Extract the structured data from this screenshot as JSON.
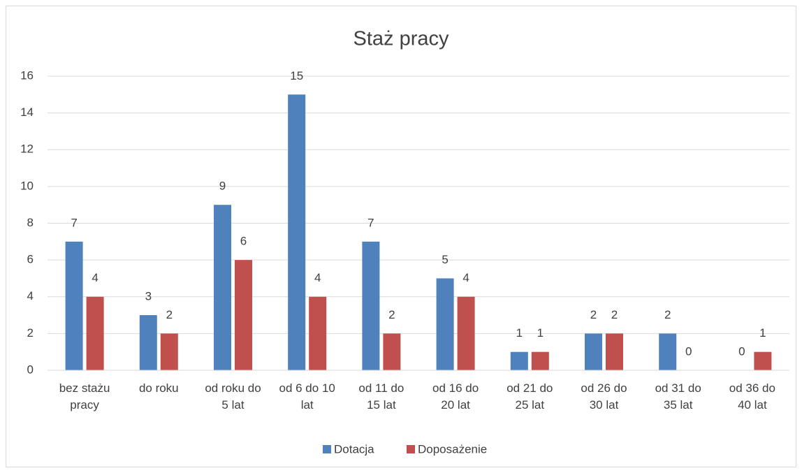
{
  "chart_data": {
    "type": "bar",
    "title": "Staż pracy",
    "categories": [
      "bez stażu pracy",
      "do roku",
      "od roku do 5 lat",
      "od 6 do 10 lat",
      "od 11 do 15 lat",
      "od 16 do 20 lat",
      "od 21 do 25 lat",
      "od 26 do 30 lat",
      "od 31 do 35 lat",
      "od 36 do 40 lat"
    ],
    "series": [
      {
        "name": "Dotacja",
        "color": "#4f81bd",
        "values": [
          7,
          3,
          9,
          15,
          7,
          5,
          1,
          2,
          2,
          0
        ]
      },
      {
        "name": "Doposażenie",
        "color": "#c0504d",
        "values": [
          4,
          2,
          6,
          4,
          2,
          4,
          1,
          2,
          0,
          1
        ]
      }
    ],
    "ylim": [
      0,
      16
    ],
    "yticks": [
      0,
      2,
      4,
      6,
      8,
      10,
      12,
      14,
      16
    ],
    "grid": true,
    "legend": "bottom"
  }
}
